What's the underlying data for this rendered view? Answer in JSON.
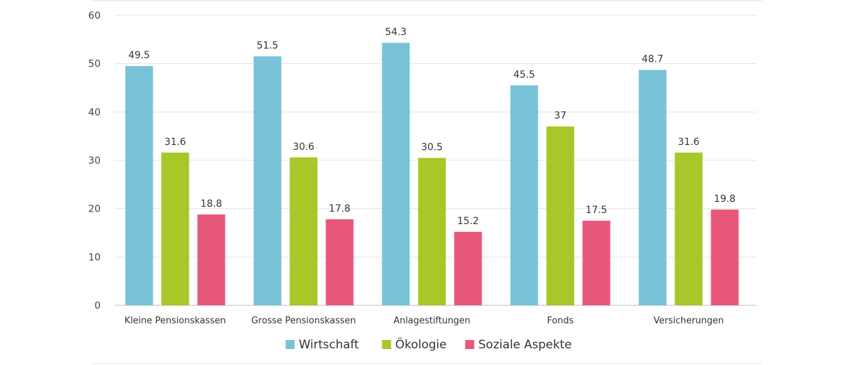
{
  "chart_data": {
    "type": "bar",
    "categories": [
      "Kleine Pensionskassen",
      "Grosse Pensionskassen",
      "Anlagestiftungen",
      "Fonds",
      "Versicherungen"
    ],
    "series": [
      {
        "name": "Wirtschaft",
        "color": "#78c3d8",
        "values": [
          49.5,
          51.5,
          54.3,
          45.5,
          48.7
        ]
      },
      {
        "name": "Ökologie",
        "color": "#a8c729",
        "values": [
          31.6,
          30.6,
          30.5,
          37,
          31.6
        ]
      },
      {
        "name": "Soziale Aspekte",
        "color": "#e8587a",
        "values": [
          18.8,
          17.8,
          15.2,
          17.5,
          19.8
        ]
      }
    ],
    "ylim": [
      0,
      60
    ],
    "yticks": [
      0,
      10,
      20,
      30,
      40,
      50,
      60
    ],
    "grid": true,
    "legend": "bottom-center"
  }
}
